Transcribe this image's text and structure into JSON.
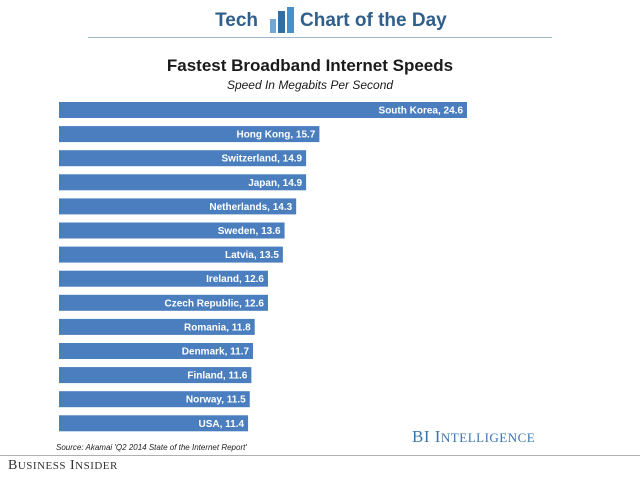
{
  "header": {
    "tech": "Tech",
    "chart_of_the_day": "Chart of the Day"
  },
  "chart_data": {
    "type": "bar",
    "orientation": "horizontal",
    "title": "Fastest Broadband Internet Speeds",
    "subtitle": "Speed In Megabits Per Second",
    "xlabel": "",
    "ylabel": "",
    "categories": [
      "South Korea",
      "Hong Kong",
      "Switzerland",
      "Japan",
      "Netherlands",
      "Sweden",
      "Latvia",
      "Ireland",
      "Czech Republic",
      "Romania",
      "Denmark",
      "Finland",
      "Norway",
      "USA"
    ],
    "values": [
      24.6,
      15.7,
      14.9,
      14.9,
      14.3,
      13.6,
      13.5,
      12.6,
      12.6,
      11.8,
      11.7,
      11.6,
      11.5,
      11.4
    ],
    "labels": [
      "South Korea, 24.6",
      "Hong Kong, 15.7",
      "Switzerland, 14.9",
      "Japan, 14.9",
      "Netherlands, 14.3",
      "Sweden, 13.6",
      "Latvia, 13.5",
      "Ireland, 12.6",
      "Czech Republic, 12.6",
      "Romania, 11.8",
      "Denmark, 11.7",
      "Finland, 11.6",
      "Norway, 11.5",
      "USA, 11.4"
    ],
    "xlim": [
      0,
      24.6
    ],
    "grid": false,
    "bar_color": "#4a7ebf"
  },
  "source": "Source: Akamai 'Q2 2014 State of the Internet Report'",
  "branding": {
    "bi_first": "BI",
    "bi_second_initial": "I",
    "bi_second_rest": "NTELLIGENCE",
    "bi_first_letter": "B",
    "bi_first_rest": "USINESS",
    "bi_second_word_initial": "I",
    "bi_second_word_rest": "NSIDER"
  }
}
